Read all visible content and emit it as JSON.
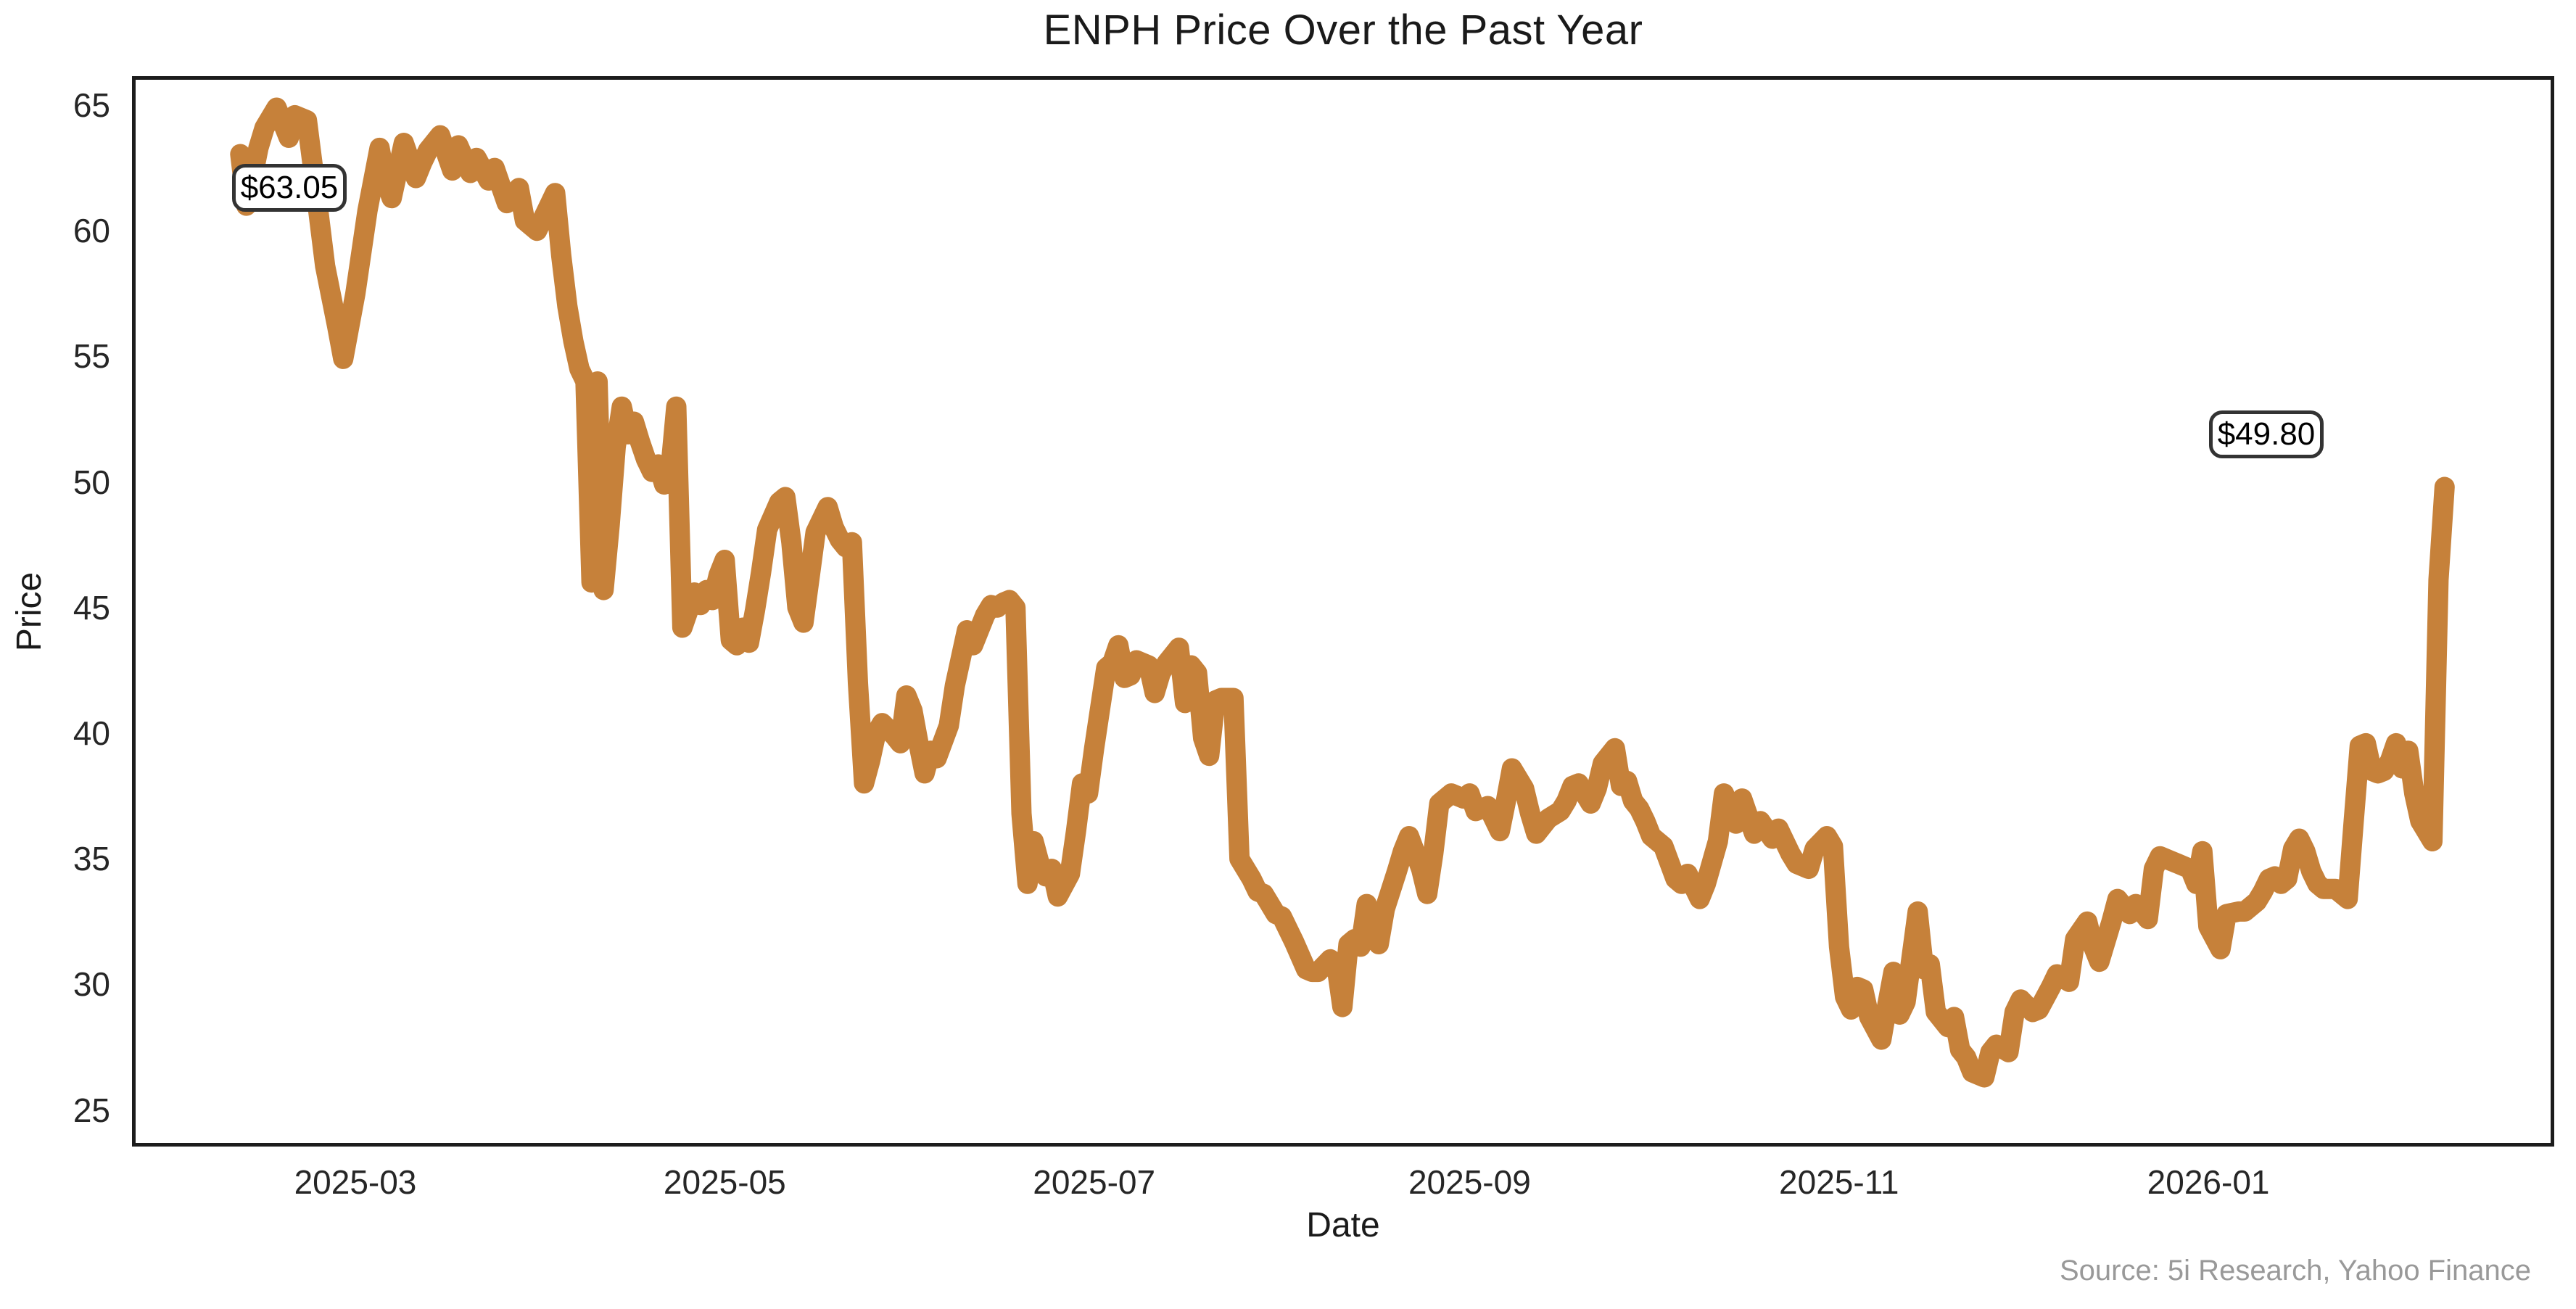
{
  "chart_data": {
    "type": "line",
    "title": "ENPH Price Over the Past Year",
    "xlabel": "Date",
    "ylabel": "Price",
    "source": "Source: 5i Research, Yahoo Finance",
    "line_color": "#C6813A",
    "spine_color": "#1c1c1c",
    "grid": "off",
    "legend": "none",
    "ylim": [
      24.5,
      66.2
    ],
    "y_ticks": [
      65,
      60,
      55,
      50,
      45,
      40,
      35,
      30,
      25
    ],
    "x_ticks": [
      {
        "label": "2025-03",
        "date": "2025-03-01"
      },
      {
        "label": "2025-05",
        "date": "2025-05-01"
      },
      {
        "label": "2025-07",
        "date": "2025-07-01"
      },
      {
        "label": "2025-09",
        "date": "2025-09-01"
      },
      {
        "label": "2025-11",
        "date": "2025-11-01"
      },
      {
        "label": "2026-01",
        "date": "2026-01-01"
      }
    ],
    "annotations": [
      {
        "label": "$63.05",
        "date": "2025-02-10",
        "value": 63.05,
        "position": "start"
      },
      {
        "label": "$49.80",
        "date": "2026-02-09",
        "value": 49.8,
        "position": "end"
      }
    ],
    "dates": [
      "2025-02-10",
      "2025-02-11",
      "2025-02-12",
      "2025-02-13",
      "2025-02-14",
      "2025-02-16",
      "2025-02-18",
      "2025-02-19",
      "2025-02-21",
      "2025-02-22",
      "2025-02-24",
      "2025-02-26",
      "2025-02-27",
      "2025-03-01",
      "2025-03-03",
      "2025-03-05",
      "2025-03-06",
      "2025-03-07",
      "2025-03-09",
      "2025-03-11",
      "2025-03-12",
      "2025-03-13",
      "2025-03-15",
      "2025-03-17",
      "2025-03-18",
      "2025-03-20",
      "2025-03-21",
      "2025-03-23",
      "2025-03-24",
      "2025-03-26",
      "2025-03-28",
      "2025-03-29",
      "2025-03-31",
      "2025-04-02",
      "2025-04-03",
      "2025-04-04",
      "2025-04-05",
      "2025-04-06",
      "2025-04-07",
      "2025-04-08",
      "2025-04-09",
      "2025-04-10",
      "2025-04-11",
      "2025-04-12",
      "2025-04-13",
      "2025-04-14",
      "2025-04-15",
      "2025-04-16",
      "2025-04-17",
      "2025-04-18",
      "2025-04-19",
      "2025-04-20",
      "2025-04-21",
      "2025-04-22",
      "2025-04-23",
      "2025-04-24",
      "2025-04-25",
      "2025-04-26",
      "2025-04-27",
      "2025-04-28",
      "2025-04-29",
      "2025-04-30",
      "2025-05-01",
      "2025-05-02",
      "2025-05-03",
      "2025-05-04",
      "2025-05-05",
      "2025-05-06",
      "2025-05-07",
      "2025-05-08",
      "2025-05-10",
      "2025-05-11",
      "2025-05-12",
      "2025-05-13",
      "2025-05-14",
      "2025-05-15",
      "2025-05-16",
      "2025-05-18",
      "2025-05-19",
      "2025-05-20",
      "2025-05-21",
      "2025-05-22",
      "2025-05-23",
      "2025-05-24",
      "2025-05-25",
      "2025-05-26",
      "2025-05-27",
      "2025-05-29",
      "2025-05-30",
      "2025-05-31",
      "2025-06-01",
      "2025-06-02",
      "2025-06-03",
      "2025-06-04",
      "2025-06-05",
      "2025-06-07",
      "2025-06-08",
      "2025-06-09",
      "2025-06-10",
      "2025-06-11",
      "2025-06-13",
      "2025-06-14",
      "2025-06-15",
      "2025-06-16",
      "2025-06-17",
      "2025-06-18",
      "2025-06-19",
      "2025-06-20",
      "2025-06-21",
      "2025-06-22",
      "2025-06-23",
      "2025-06-24",
      "2025-06-25",
      "2025-06-27",
      "2025-06-28",
      "2025-06-29",
      "2025-06-30",
      "2025-07-01",
      "2025-07-02",
      "2025-07-03",
      "2025-07-04",
      "2025-07-05",
      "2025-07-06",
      "2025-07-07",
      "2025-07-08",
      "2025-07-10",
      "2025-07-11",
      "2025-07-12",
      "2025-07-13",
      "2025-07-15",
      "2025-07-16",
      "2025-07-17",
      "2025-07-18",
      "2025-07-19",
      "2025-07-20",
      "2025-07-21",
      "2025-07-22",
      "2025-07-24",
      "2025-07-25",
      "2025-07-26",
      "2025-07-27",
      "2025-07-28",
      "2025-07-29",
      "2025-07-31",
      "2025-08-01",
      "2025-08-02",
      "2025-08-03",
      "2025-08-05",
      "2025-08-06",
      "2025-08-07",
      "2025-08-09",
      "2025-08-10",
      "2025-08-11",
      "2025-08-12",
      "2025-08-13",
      "2025-08-14",
      "2025-08-15",
      "2025-08-17",
      "2025-08-18",
      "2025-08-20",
      "2025-08-21",
      "2025-08-22",
      "2025-08-24",
      "2025-08-25",
      "2025-08-26",
      "2025-08-27",
      "2025-08-29",
      "2025-08-31",
      "2025-09-01",
      "2025-09-02",
      "2025-09-04",
      "2025-09-05",
      "2025-09-06",
      "2025-09-07",
      "2025-09-08",
      "2025-09-10",
      "2025-09-11",
      "2025-09-12",
      "2025-09-14",
      "2025-09-16",
      "2025-09-17",
      "2025-09-18",
      "2025-09-19",
      "2025-09-21",
      "2025-09-22",
      "2025-09-23",
      "2025-09-25",
      "2025-09-26",
      "2025-09-27",
      "2025-09-28",
      "2025-09-29",
      "2025-09-30",
      "2025-10-01",
      "2025-10-03",
      "2025-10-05",
      "2025-10-06",
      "2025-10-07",
      "2025-10-09",
      "2025-10-10",
      "2025-10-12",
      "2025-10-13",
      "2025-10-15",
      "2025-10-16",
      "2025-10-18",
      "2025-10-19",
      "2025-10-21",
      "2025-10-22",
      "2025-10-24",
      "2025-10-25",
      "2025-10-27",
      "2025-10-28",
      "2025-10-30",
      "2025-10-31",
      "2025-11-01",
      "2025-11-02",
      "2025-11-03",
      "2025-11-04",
      "2025-11-05",
      "2025-11-06",
      "2025-11-08",
      "2025-11-09",
      "2025-11-10",
      "2025-11-11",
      "2025-11-12",
      "2025-11-14",
      "2025-11-15",
      "2025-11-16",
      "2025-11-17",
      "2025-11-19",
      "2025-11-20",
      "2025-11-21",
      "2025-11-22",
      "2025-11-23",
      "2025-11-25",
      "2025-11-26",
      "2025-11-27",
      "2025-11-29",
      "2025-11-30",
      "2025-12-01",
      "2025-12-03",
      "2025-12-04",
      "2025-12-06",
      "2025-12-07",
      "2025-12-09",
      "2025-12-10",
      "2025-12-12",
      "2025-12-13",
      "2025-12-14",
      "2025-12-16",
      "2025-12-17",
      "2025-12-19",
      "2025-12-20",
      "2025-12-22",
      "2025-12-23",
      "2025-12-24",
      "2025-12-26",
      "2025-12-27",
      "2025-12-29",
      "2025-12-30",
      "2025-12-31",
      "2026-01-01",
      "2026-01-03",
      "2026-01-04",
      "2026-01-06",
      "2026-01-07",
      "2026-01-09",
      "2026-01-10",
      "2026-01-11",
      "2026-01-12",
      "2026-01-13",
      "2026-01-14",
      "2026-01-15",
      "2026-01-16",
      "2026-01-17",
      "2026-01-18",
      "2026-01-19",
      "2026-01-20",
      "2026-01-22",
      "2026-01-23",
      "2026-01-24",
      "2026-01-25",
      "2026-01-26",
      "2026-01-27",
      "2026-01-28",
      "2026-01-29",
      "2026-01-30",
      "2026-01-31",
      "2026-02-01",
      "2026-02-02",
      "2026-02-03",
      "2026-02-04",
      "2026-02-05",
      "2026-02-06",
      "2026-02-07",
      "2026-02-08",
      "2026-02-09"
    ],
    "prices": [
      63.05,
      61.0,
      62.1,
      63.3,
      64.1,
      64.9,
      63.7,
      64.6,
      64.4,
      62.5,
      58.6,
      56.2,
      54.9,
      57.5,
      60.8,
      63.3,
      62.0,
      61.3,
      63.5,
      62.1,
      62.7,
      63.2,
      63.8,
      62.4,
      63.4,
      62.3,
      62.9,
      62.0,
      62.5,
      61.1,
      61.7,
      60.4,
      60.0,
      61.0,
      61.5,
      59.0,
      57.0,
      55.6,
      54.5,
      54.0,
      46.0,
      54.0,
      45.7,
      48.3,
      51.4,
      53.0,
      51.9,
      52.4,
      51.6,
      50.9,
      50.4,
      50.7,
      49.9,
      50.4,
      53.0,
      44.2,
      44.9,
      45.6,
      45.1,
      45.7,
      45.3,
      46.3,
      46.9,
      43.7,
      43.5,
      44.2,
      43.6,
      44.9,
      46.4,
      48.1,
      49.2,
      49.4,
      47.6,
      45.0,
      44.4,
      46.2,
      48.0,
      49.0,
      48.2,
      47.7,
      47.4,
      47.6,
      42.0,
      38.0,
      38.9,
      40.0,
      40.4,
      39.9,
      39.6,
      41.5,
      40.9,
      39.6,
      38.4,
      39.3,
      39.0,
      40.3,
      41.9,
      43.0,
      44.1,
      43.5,
      44.7,
      45.1,
      45.0,
      45.2,
      45.3,
      45.0,
      36.8,
      34.0,
      35.7,
      34.8,
      34.3,
      34.6,
      33.5,
      34.4,
      36.1,
      38.0,
      37.6,
      39.4,
      41.0,
      42.6,
      42.8,
      43.5,
      42.2,
      42.3,
      42.9,
      42.7,
      41.6,
      42.4,
      42.8,
      43.4,
      41.2,
      42.7,
      42.4,
      39.8,
      39.1,
      41.3,
      41.4,
      41.4,
      35.0,
      34.6,
      34.2,
      33.7,
      33.6,
      32.8,
      32.7,
      32.2,
      31.7,
      30.6,
      30.5,
      30.5,
      31.0,
      30.8,
      29.1,
      31.6,
      31.8,
      31.5,
      33.2,
      31.6,
      33.0,
      34.5,
      35.3,
      35.9,
      34.6,
      33.6,
      35.2,
      37.2,
      37.6,
      37.4,
      37.6,
      36.9,
      37.1,
      36.6,
      36.1,
      37.3,
      38.6,
      37.8,
      36.8,
      36.0,
      36.6,
      36.9,
      37.3,
      37.9,
      38.0,
      37.2,
      37.8,
      38.8,
      39.4,
      37.9,
      38.1,
      37.3,
      37.0,
      36.5,
      35.9,
      35.5,
      34.2,
      34.0,
      34.4,
      33.4,
      34.0,
      35.7,
      37.6,
      36.4,
      37.4,
      36.0,
      36.5,
      35.8,
      36.2,
      35.2,
      34.8,
      34.6,
      35.4,
      35.9,
      35.5,
      31.5,
      29.5,
      29.0,
      29.9,
      29.8,
      28.7,
      27.8,
      29.2,
      30.5,
      28.8,
      29.3,
      32.9,
      30.6,
      30.8,
      28.9,
      28.3,
      28.7,
      27.4,
      27.1,
      26.5,
      26.3,
      27.3,
      27.6,
      27.3,
      28.9,
      29.4,
      28.9,
      29.0,
      29.9,
      30.4,
      30.1,
      31.8,
      32.5,
      31.5,
      30.9,
      32.5,
      33.4,
      32.8,
      33.2,
      32.6,
      34.6,
      35.1,
      34.9,
      34.8,
      34.6,
      34.0,
      35.3,
      32.3,
      31.4,
      32.8,
      32.9,
      32.9,
      33.3,
      33.7,
      34.2,
      34.3,
      34.0,
      34.2,
      35.4,
      35.8,
      35.3,
      34.5,
      34.0,
      33.8,
      33.8,
      33.6,
      33.4,
      36.5,
      39.5,
      39.6,
      38.5,
      38.4,
      38.5,
      38.9,
      39.6,
      38.6,
      39.3,
      37.6,
      36.5,
      36.1,
      35.7,
      46.1,
      49.8
    ]
  }
}
